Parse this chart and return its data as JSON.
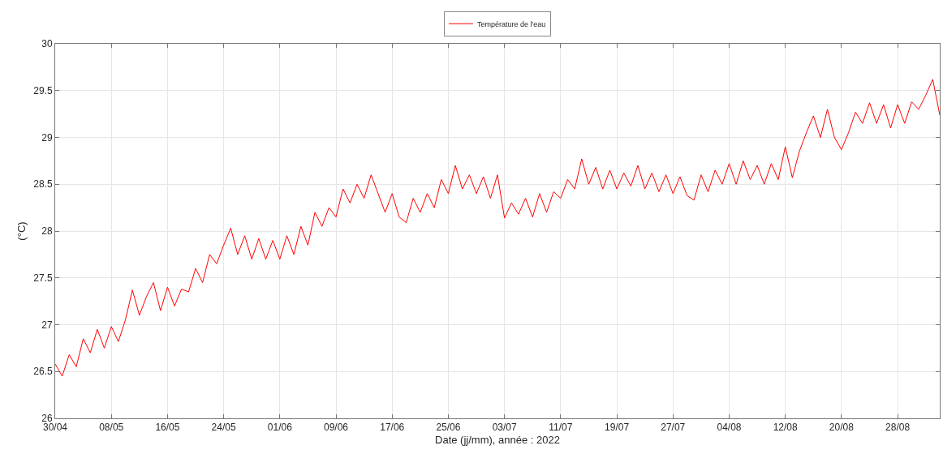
{
  "chart_data": {
    "type": "line",
    "xlabel": "Date (jj/mm), année : 2022",
    "ylabel": "(°C)",
    "legend": "top",
    "grid": true,
    "line_style": "solid",
    "marker": "none",
    "xlim": [
      "2022-04-30",
      "2022-09-03"
    ],
    "xticks": [
      {
        "value": "2022-04-30",
        "label": "30/04"
      },
      {
        "value": "2022-05-08",
        "label": "08/05"
      },
      {
        "value": "2022-05-16",
        "label": "16/05"
      },
      {
        "value": "2022-05-24",
        "label": "24/05"
      },
      {
        "value": "2022-06-01",
        "label": "01/06"
      },
      {
        "value": "2022-06-09",
        "label": "09/06"
      },
      {
        "value": "2022-06-17",
        "label": "17/06"
      },
      {
        "value": "2022-06-25",
        "label": "25/06"
      },
      {
        "value": "2022-07-03",
        "label": "03/07"
      },
      {
        "value": "2022-07-11",
        "label": "11/07"
      },
      {
        "value": "2022-07-19",
        "label": "19/07"
      },
      {
        "value": "2022-07-27",
        "label": "27/07"
      },
      {
        "value": "2022-08-04",
        "label": "04/08"
      },
      {
        "value": "2022-08-12",
        "label": "12/08"
      },
      {
        "value": "2022-08-20",
        "label": "20/08"
      },
      {
        "value": "2022-08-28",
        "label": "28/08"
      }
    ],
    "ylim": [
      26,
      30
    ],
    "yticks": [
      26,
      26.5,
      27,
      27.5,
      28,
      28.5,
      29,
      29.5,
      30
    ],
    "x": [
      "2022-04-30",
      "2022-05-01",
      "2022-05-02",
      "2022-05-03",
      "2022-05-04",
      "2022-05-05",
      "2022-05-06",
      "2022-05-07",
      "2022-05-08",
      "2022-05-09",
      "2022-05-10",
      "2022-05-11",
      "2022-05-12",
      "2022-05-13",
      "2022-05-14",
      "2022-05-15",
      "2022-05-16",
      "2022-05-17",
      "2022-05-18",
      "2022-05-19",
      "2022-05-20",
      "2022-05-21",
      "2022-05-22",
      "2022-05-23",
      "2022-05-24",
      "2022-05-25",
      "2022-05-26",
      "2022-05-27",
      "2022-05-28",
      "2022-05-29",
      "2022-05-30",
      "2022-05-31",
      "2022-06-01",
      "2022-06-02",
      "2022-06-03",
      "2022-06-04",
      "2022-06-05",
      "2022-06-06",
      "2022-06-07",
      "2022-06-08",
      "2022-06-09",
      "2022-06-10",
      "2022-06-11",
      "2022-06-12",
      "2022-06-13",
      "2022-06-14",
      "2022-06-15",
      "2022-06-16",
      "2022-06-17",
      "2022-06-18",
      "2022-06-19",
      "2022-06-20",
      "2022-06-21",
      "2022-06-22",
      "2022-06-23",
      "2022-06-24",
      "2022-06-25",
      "2022-06-26",
      "2022-06-27",
      "2022-06-28",
      "2022-06-29",
      "2022-06-30",
      "2022-07-01",
      "2022-07-02",
      "2022-07-03",
      "2022-07-04",
      "2022-07-05",
      "2022-07-06",
      "2022-07-07",
      "2022-07-08",
      "2022-07-09",
      "2022-07-10",
      "2022-07-11",
      "2022-07-12",
      "2022-07-13",
      "2022-07-14",
      "2022-07-15",
      "2022-07-16",
      "2022-07-17",
      "2022-07-18",
      "2022-07-19",
      "2022-07-20",
      "2022-07-21",
      "2022-07-22",
      "2022-07-23",
      "2022-07-24",
      "2022-07-25",
      "2022-07-26",
      "2022-07-27",
      "2022-07-28",
      "2022-07-29",
      "2022-07-30",
      "2022-07-31",
      "2022-08-01",
      "2022-08-02",
      "2022-08-03",
      "2022-08-04",
      "2022-08-05",
      "2022-08-06",
      "2022-08-07",
      "2022-08-08",
      "2022-08-09",
      "2022-08-10",
      "2022-08-11",
      "2022-08-12",
      "2022-08-13",
      "2022-08-14",
      "2022-08-15",
      "2022-08-16",
      "2022-08-17",
      "2022-08-18",
      "2022-08-19",
      "2022-08-20",
      "2022-08-21",
      "2022-08-22",
      "2022-08-23",
      "2022-08-24",
      "2022-08-25",
      "2022-08-26",
      "2022-08-27",
      "2022-08-28",
      "2022-08-29",
      "2022-08-30",
      "2022-08-31",
      "2022-09-01",
      "2022-09-02",
      "2022-09-03"
    ],
    "series": [
      {
        "name": "Température de l'eau",
        "color": "#ff0000",
        "values": [
          26.58,
          26.45,
          26.68,
          26.55,
          26.85,
          26.7,
          26.95,
          26.75,
          26.98,
          26.82,
          27.05,
          27.37,
          27.1,
          27.3,
          27.45,
          27.15,
          27.4,
          27.2,
          27.38,
          27.35,
          27.6,
          27.45,
          27.75,
          27.65,
          27.85,
          28.03,
          27.75,
          27.95,
          27.7,
          27.92,
          27.7,
          27.9,
          27.7,
          27.95,
          27.75,
          28.05,
          27.85,
          28.2,
          28.05,
          28.25,
          28.15,
          28.45,
          28.3,
          28.5,
          28.35,
          28.6,
          28.4,
          28.2,
          28.4,
          28.15,
          28.09,
          28.35,
          28.2,
          28.4,
          28.25,
          28.55,
          28.4,
          28.7,
          28.45,
          28.6,
          28.4,
          28.58,
          28.35,
          28.6,
          28.14,
          28.3,
          28.18,
          28.35,
          28.15,
          28.4,
          28.2,
          28.42,
          28.35,
          28.55,
          28.45,
          28.77,
          28.5,
          28.68,
          28.45,
          28.65,
          28.45,
          28.62,
          28.48,
          28.7,
          28.45,
          28.62,
          28.42,
          28.6,
          28.4,
          28.58,
          28.38,
          28.33,
          28.6,
          28.42,
          28.65,
          28.5,
          28.72,
          28.5,
          28.75,
          28.55,
          28.7,
          28.5,
          28.72,
          28.55,
          28.9,
          28.57,
          28.85,
          29.05,
          29.23,
          29.0,
          29.3,
          29.0,
          28.87,
          29.05,
          29.27,
          29.15,
          29.37,
          29.15,
          29.35,
          29.1,
          29.35,
          29.15,
          29.38,
          29.3,
          29.45,
          29.62,
          29.24
        ]
      }
    ]
  }
}
